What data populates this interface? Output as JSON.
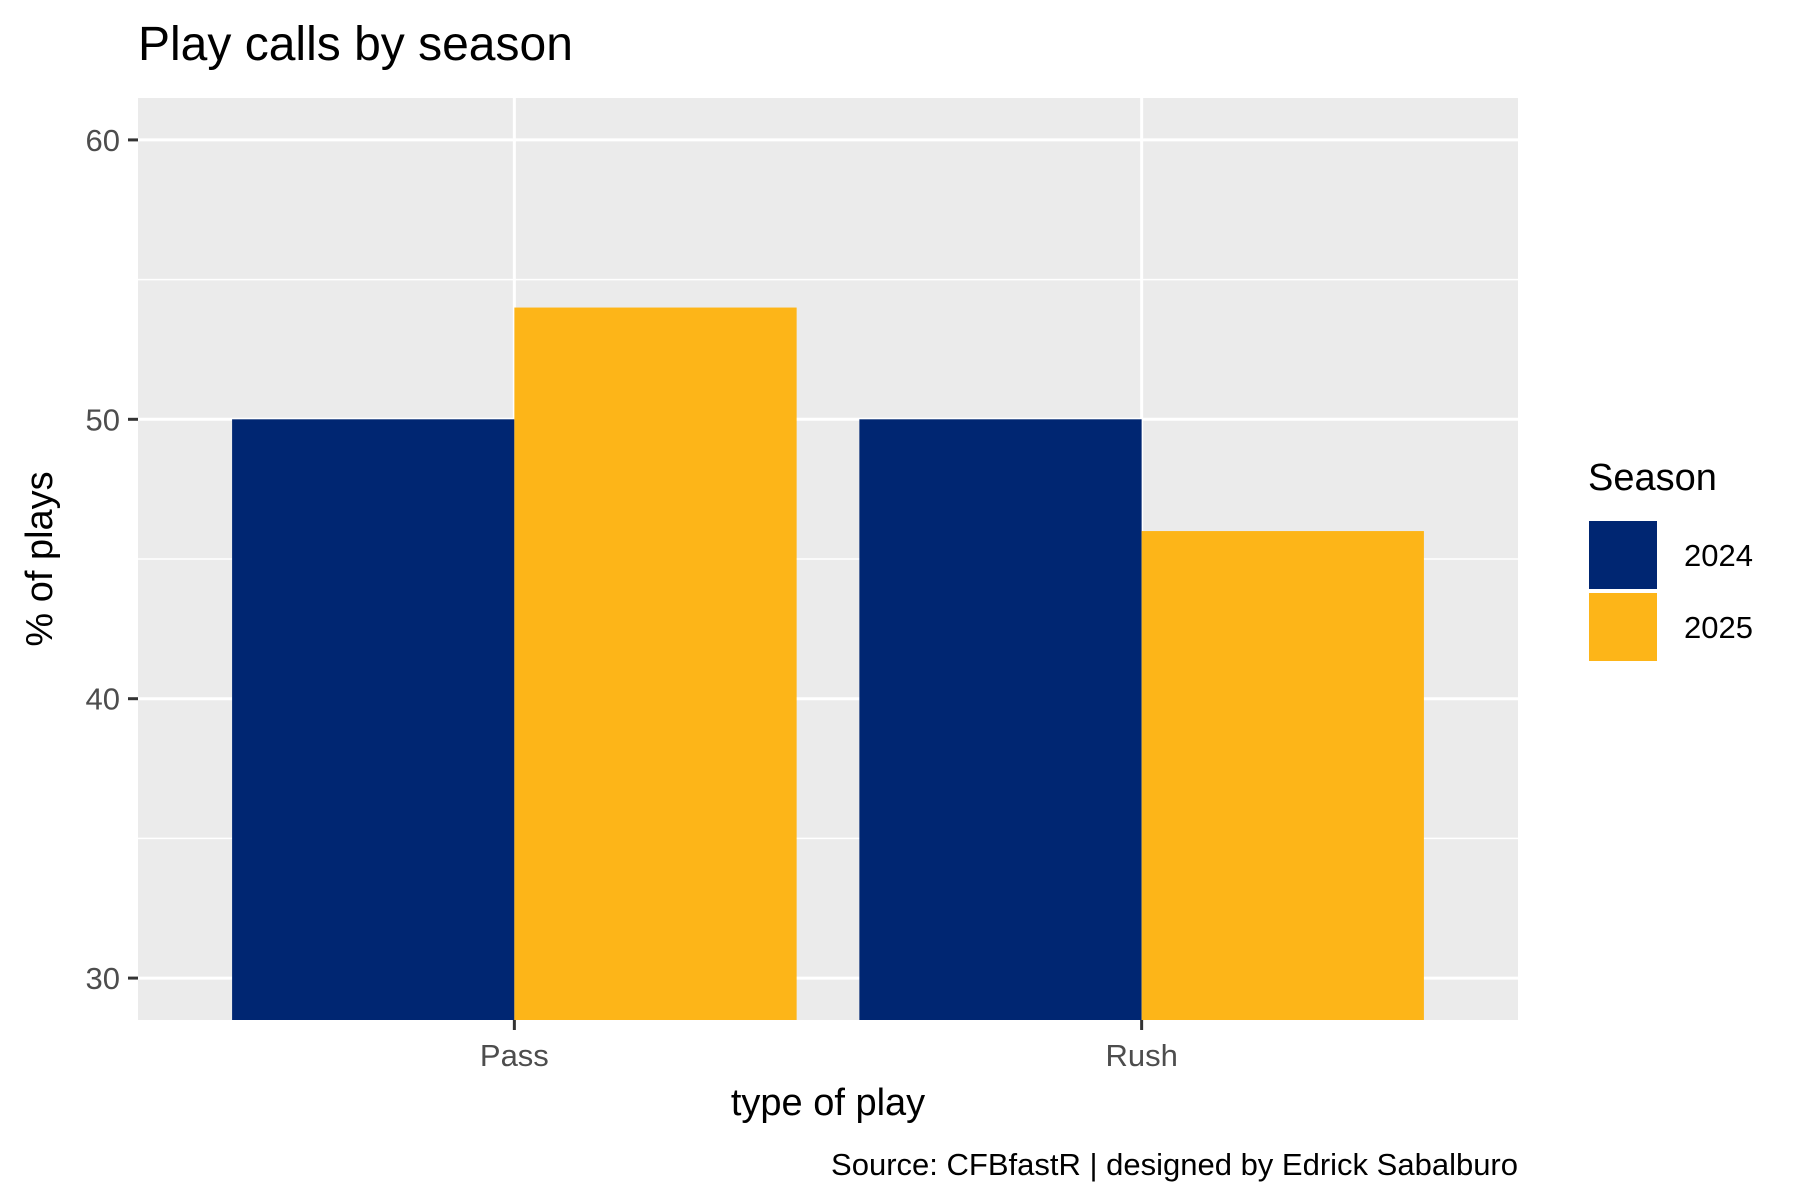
{
  "chart_data": {
    "type": "bar",
    "title": "Play calls by season",
    "xlabel": "type of play",
    "ylabel": "% of plays",
    "caption": "Source: CFBfastR | designed by Edrick Sabalburo",
    "categories": [
      "Pass",
      "Rush"
    ],
    "series": [
      {
        "name": "2024",
        "values": [
          50,
          50
        ],
        "color": "#002672"
      },
      {
        "name": "2025",
        "values": [
          54,
          46
        ],
        "color": "#FDB518"
      }
    ],
    "ylim": [
      28.5,
      61.5
    ],
    "yticks": [
      30,
      40,
      50,
      60
    ],
    "yticks_minor": [
      35,
      45,
      55
    ],
    "legend": {
      "title": "Season",
      "position": "right"
    },
    "grid": true,
    "panel_color": "#EBEBEB",
    "grid_color": "#FFFFFF"
  }
}
